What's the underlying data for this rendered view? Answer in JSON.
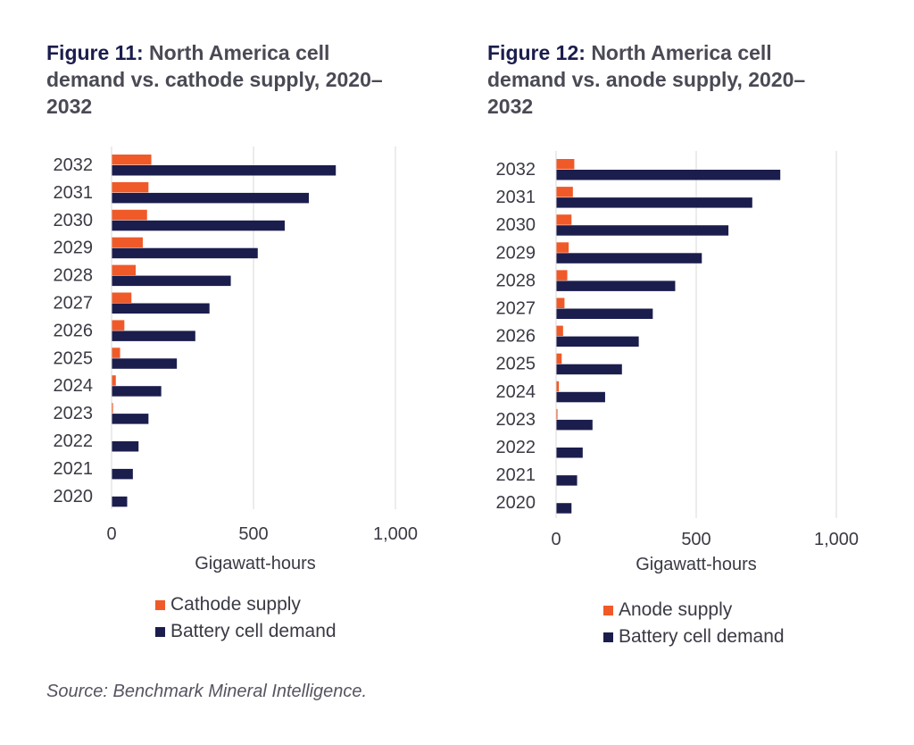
{
  "colors": {
    "supply": "#f05a28",
    "demand": "#1b1d4d",
    "grid": "#d9d9d9"
  },
  "figures": [
    {
      "num": "Figure 11:",
      "title": "North America cell demand vs. cathode supply, 2020–2032",
      "legend": [
        "Cathode supply",
        "Battery cell demand"
      ]
    },
    {
      "num": "Figure 12:",
      "title": "North America cell demand vs. anode supply, 2020–2032",
      "legend": [
        "Anode supply",
        "Battery cell demand"
      ]
    }
  ],
  "source": "Source: Benchmark Mineral Intelligence.",
  "chart_data": [
    {
      "type": "bar",
      "orientation": "horizontal",
      "title": "Figure 11: North America cell demand vs. cathode supply, 2020–2032",
      "xlabel": "Gigawatt-hours",
      "ylabel": "",
      "xlim": [
        0,
        1000
      ],
      "xticks": [
        "0",
        "500",
        "1,000"
      ],
      "grid": true,
      "legend_position": "bottom",
      "categories": [
        "2032",
        "2031",
        "2030",
        "2029",
        "2028",
        "2027",
        "2026",
        "2025",
        "2024",
        "2023",
        "2022",
        "2021",
        "2020"
      ],
      "series": [
        {
          "name": "Cathode supply",
          "values": [
            140,
            130,
            125,
            110,
            85,
            70,
            45,
            30,
            15,
            5,
            0,
            0,
            0
          ]
        },
        {
          "name": "Battery cell demand",
          "values": [
            790,
            695,
            610,
            515,
            420,
            345,
            295,
            230,
            175,
            130,
            95,
            75,
            55
          ]
        }
      ]
    },
    {
      "type": "bar",
      "orientation": "horizontal",
      "title": "Figure 12: North America cell demand vs. anode supply, 2020–2032",
      "xlabel": "Gigawatt-hours",
      "ylabel": "",
      "xlim": [
        0,
        1000
      ],
      "xticks": [
        "0",
        "500",
        "1,000"
      ],
      "grid": true,
      "legend_position": "bottom",
      "categories": [
        "2032",
        "2031",
        "2030",
        "2029",
        "2028",
        "2027",
        "2026",
        "2025",
        "2024",
        "2023",
        "2022",
        "2021",
        "2020"
      ],
      "series": [
        {
          "name": "Anode supply",
          "values": [
            65,
            60,
            55,
            45,
            40,
            30,
            25,
            20,
            10,
            5,
            0,
            0,
            0
          ]
        },
        {
          "name": "Battery cell demand",
          "values": [
            800,
            700,
            615,
            520,
            425,
            345,
            295,
            235,
            175,
            130,
            95,
            75,
            55
          ]
        }
      ]
    }
  ]
}
